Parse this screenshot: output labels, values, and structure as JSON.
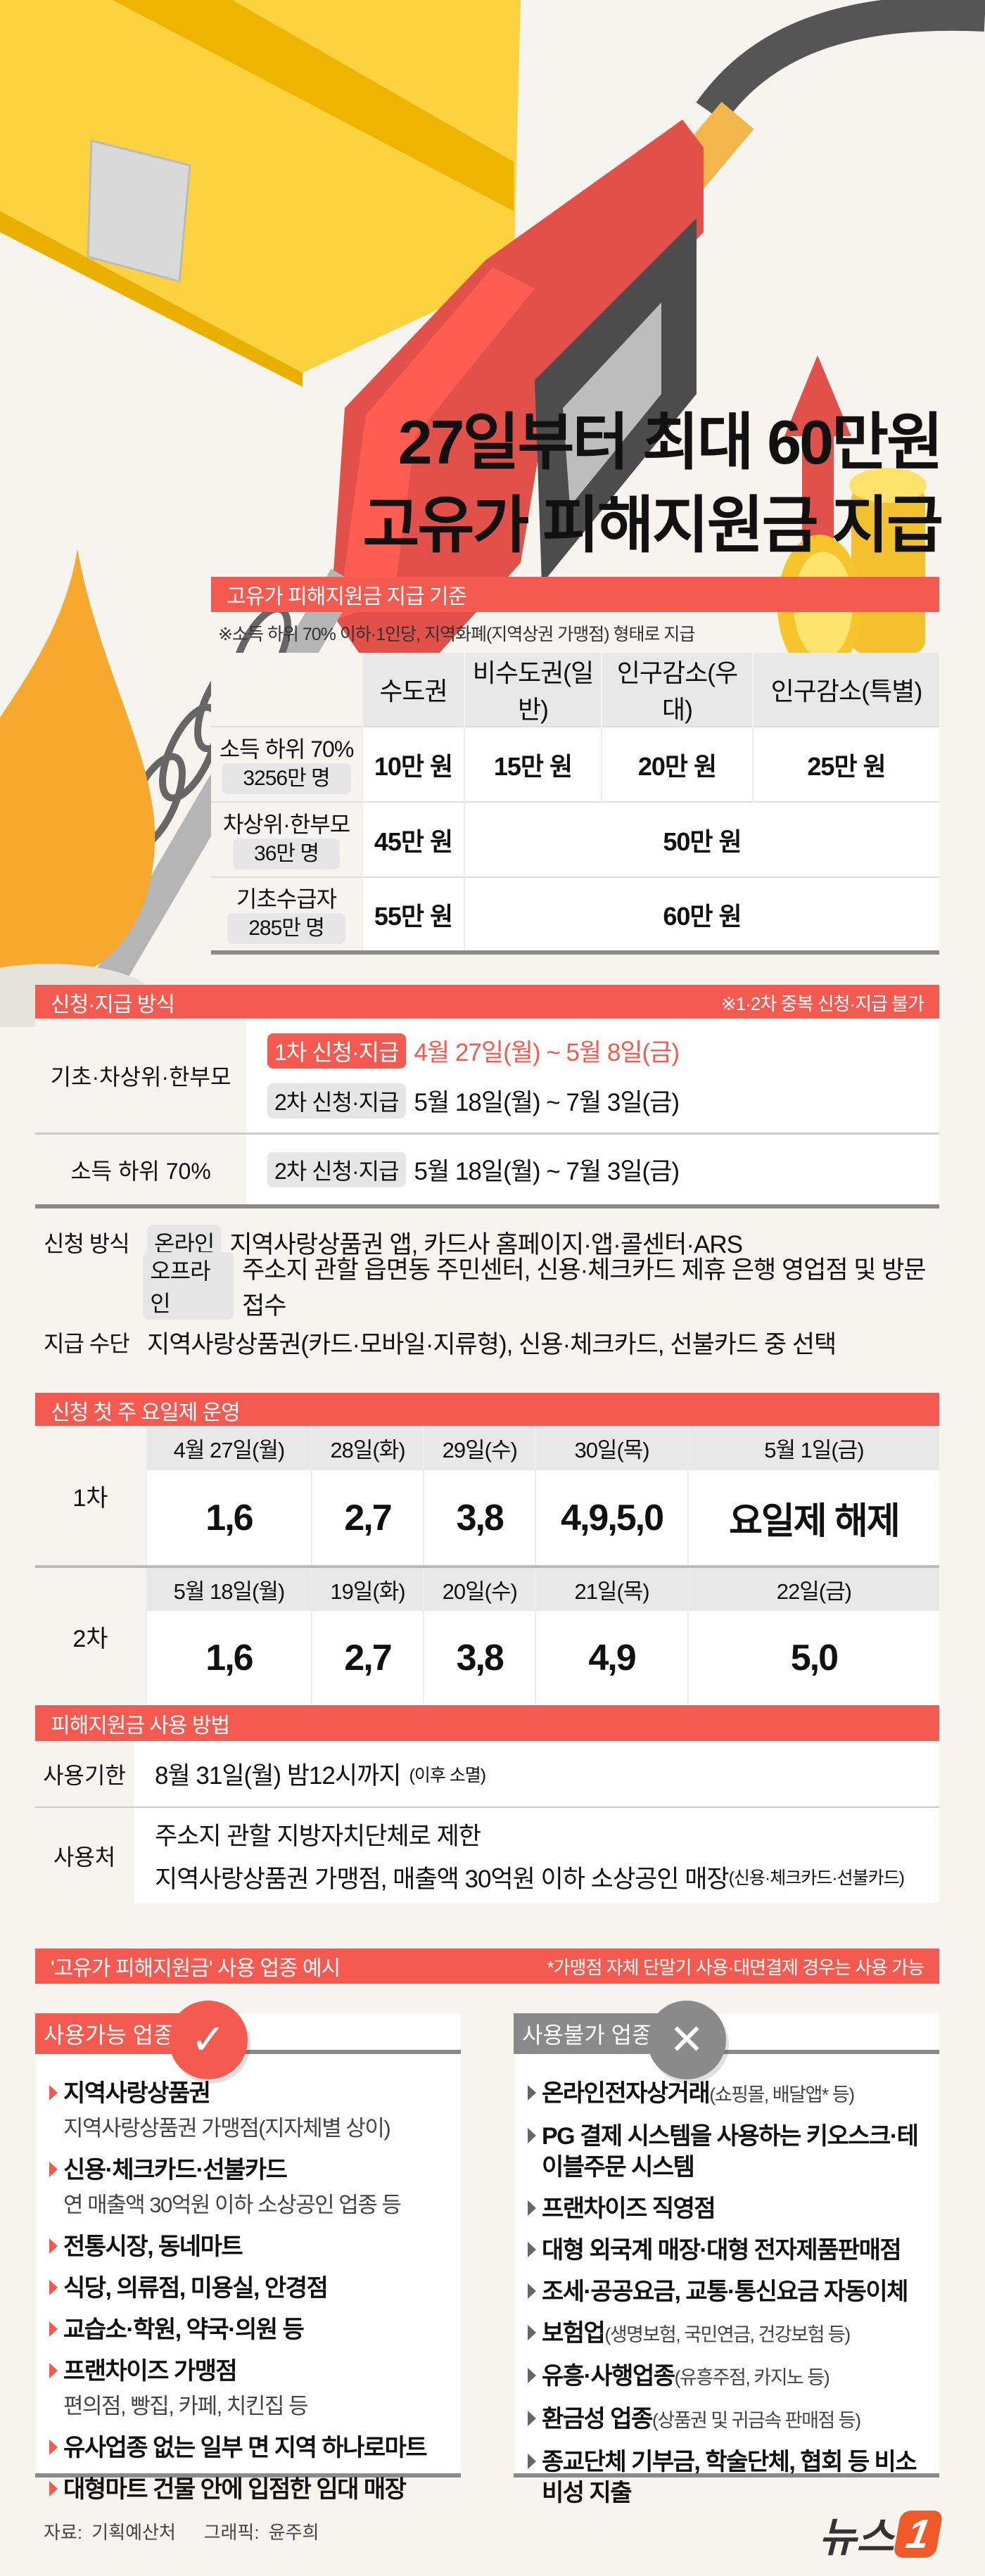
{
  "headline": {
    "line1": "27일부터 최대 60만원",
    "line2": "고유가 피해지원금 지급"
  },
  "colors": {
    "accent": "#f45a4f",
    "gray": "#8a8a8a",
    "card": "#fdd23f",
    "drop": "#f7a92e"
  },
  "criteria": {
    "title": "고유가 피해지원금 지급 기준",
    "note": "※소득 하위 70% 이하·1인당, 지역화폐(지역상권 가맹점) 형태로 지급",
    "columns": [
      "수도권",
      "비수도권(일반)",
      "인구감소(우대)",
      "인구감소(특별)"
    ],
    "rows": [
      {
        "label": "소득 하위 70%",
        "count": "3256만 명",
        "values": [
          "10만 원",
          "15만 원",
          "20만 원",
          "25만 원"
        ]
      },
      {
        "label": "차상위·한부모",
        "count": "36만 명",
        "values": [
          "45만 원",
          "50만 원"
        ]
      },
      {
        "label": "기초수급자",
        "count": "285만 명",
        "values": [
          "55만 원",
          "60만 원"
        ]
      }
    ]
  },
  "method": {
    "title": "신청·지급 방식",
    "note": "※1·2차 중복 신청·지급 불가",
    "rows": [
      {
        "label": "기초·차상위·한부모",
        "items": [
          {
            "tag": "1차 신청·지급",
            "period": "4월 27일(월) ~ 5월 8일(금)"
          },
          {
            "tag": "2차 신청·지급",
            "period": "5월 18일(월) ~ 7월 3일(금)"
          }
        ]
      },
      {
        "label": "소득 하위 70%",
        "items": [
          {
            "tag": "2차 신청·지급",
            "period": "5월 18일(월) ~ 7월 3일(금)"
          }
        ]
      }
    ],
    "apply_label": "신청 방식",
    "online_tag": "온라인",
    "online_text": "지역사랑상품권 앱, 카드사 홈페이지·앱·콜센터·ARS",
    "offline_tag": "오프라인",
    "offline_text": "주소지 관할 읍면동 주민센터, 신용·체크카드 제휴 은행 영업점 및 방문 접수",
    "pay_label": "지급 수단",
    "pay_text": "지역사랑상품권(카드·모바일·지류형), 신용·체크카드, 선불카드 중 선택"
  },
  "schedule": {
    "title": "신청 첫 주 요일제 운영",
    "rounds": [
      {
        "label": "1차",
        "dates": [
          "4월 27일(월)",
          "28일(화)",
          "29일(수)",
          "30일(목)",
          "5월 1일(금)"
        ],
        "digits": [
          "1,6",
          "2,7",
          "3,8",
          "4,9,5,0",
          "요일제 해제"
        ]
      },
      {
        "label": "2차",
        "dates": [
          "5월 18일(월)",
          "19일(화)",
          "20일(수)",
          "21일(목)",
          "22일(금)"
        ],
        "digits": [
          "1,6",
          "2,7",
          "3,8",
          "4,9",
          "5,0"
        ]
      }
    ]
  },
  "usage": {
    "title": "피해지원금 사용 방법",
    "period_label": "사용기한",
    "period": "8월 31일(월) 밤12시까지",
    "period_note": "(이후 소멸)",
    "place_label": "사용처",
    "place1": "주소지 관할 지방자치단체로 제한",
    "place2": "지역사랑상품권 가맹점, 매출액 30억원 이하 소상공인 매장",
    "place2_note": "(신용·체크카드·선불카드)"
  },
  "examples": {
    "title": "'고유가 피해지원금' 사용 업종 예시",
    "note": "*가맹점 자체 단말기 사용·대면결제 경우는 사용 가능",
    "allowed": {
      "label": "사용가능 업종",
      "icon": "check-icon",
      "items": [
        {
          "text": "지역사랑상품권",
          "sub": "지역사랑상품권 가맹점(지자체별 상이)"
        },
        {
          "text": "신용·체크카드·선불카드",
          "sub": "연 매출액 30억원 이하 소상공인 업종 등"
        },
        {
          "text": "전통시장, 동네마트"
        },
        {
          "text": "식당, 의류점, 미용실, 안경점"
        },
        {
          "text": "교습소·학원, 약국·의원 등"
        },
        {
          "text": "프랜차이즈 가맹점",
          "sub": "편의점, 빵집, 카페, 치킨집 등"
        },
        {
          "text": "유사업종 없는 일부 면 지역 하나로마트"
        },
        {
          "text": "대형마트 건물 안에 입점한 임대 매장"
        }
      ]
    },
    "denied": {
      "label": "사용불가 업종",
      "icon": "x-icon",
      "items": [
        {
          "text": "온라인전자상거래",
          "small": "(쇼핑몰, 배달앱* 등)"
        },
        {
          "text": "PG 결제 시스템을 사용하는 키오스크·테이블주문 시스템"
        },
        {
          "text": "프랜차이즈 직영점"
        },
        {
          "text": "대형 외국계 매장·대형 전자제품판매점"
        },
        {
          "text": "조세·공공요금, 교통·통신요금 자동이체"
        },
        {
          "text": "보험업",
          "small": "(생명보험, 국민연금, 건강보험 등)"
        },
        {
          "text": "유흥·사행업종",
          "small": "(유흥주점, 카지노 등)"
        },
        {
          "text": "환금성 업종",
          "small": "(상품권 및 귀금속 판매점 등)"
        },
        {
          "text": "종교단체 기부금, 학술단체, 협회 등 비소비성 지출"
        }
      ]
    }
  },
  "footer": {
    "source": "자료: 기획예산처",
    "graphic": "그래픽: 윤주희"
  },
  "logo": {
    "text": "뉴스",
    "mark": "1"
  }
}
